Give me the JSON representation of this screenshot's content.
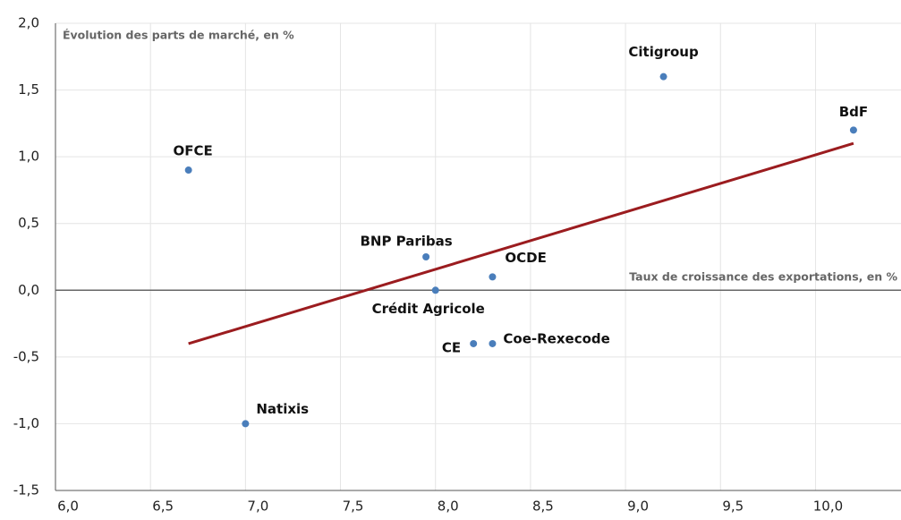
{
  "chart_data": {
    "type": "scatter",
    "y_label": "Évolution des parts de marché, en %",
    "x_label": "Taux de croissance des exportations, en %",
    "point_labels": [
      "Citigroup",
      "BdF",
      "OFCE",
      "BNP Paribas",
      "OCDE",
      "Crédit Agricole",
      "CE",
      "Coe-Rexecode",
      "Natixis"
    ],
    "x": [
      9.2,
      10.2,
      6.7,
      7.95,
      8.3,
      8.0,
      8.2,
      8.3,
      7.0
    ],
    "values": [
      1.6,
      1.2,
      0.9,
      0.25,
      0.1,
      0.0,
      -0.4,
      -0.4,
      -1.0
    ],
    "color": "#4a7ebb",
    "trendline": {
      "x": [
        6.7,
        10.2
      ],
      "y": [
        -0.4,
        1.1
      ],
      "color": "#9b1c1f"
    },
    "xlim": [
      6.0,
      10.45
    ],
    "ylim": [
      -1.5,
      2.0
    ],
    "xticks": [
      {
        "value": 6.0,
        "label": "6,0"
      },
      {
        "value": 6.5,
        "label": "6,5"
      },
      {
        "value": 7.0,
        "label": "7,0"
      },
      {
        "value": 7.5,
        "label": "7,5"
      },
      {
        "value": 8.0,
        "label": "8,0"
      },
      {
        "value": 8.5,
        "label": "8,5"
      },
      {
        "value": 9.0,
        "label": "9,0"
      },
      {
        "value": 9.5,
        "label": "9,5"
      },
      {
        "value": 10.0,
        "label": "10,0"
      }
    ],
    "yticks": [
      {
        "value": -1.5,
        "label": "-1,5"
      },
      {
        "value": -1.0,
        "label": "-1,0"
      },
      {
        "value": -0.5,
        "label": "-0,5"
      },
      {
        "value": 0.0,
        "label": "0,0"
      },
      {
        "value": 0.5,
        "label": "0,5"
      },
      {
        "value": 1.0,
        "label": "1,0"
      },
      {
        "value": 1.5,
        "label": "1,5"
      },
      {
        "value": 2.0,
        "label": "2,0"
      }
    ],
    "grid": true
  }
}
